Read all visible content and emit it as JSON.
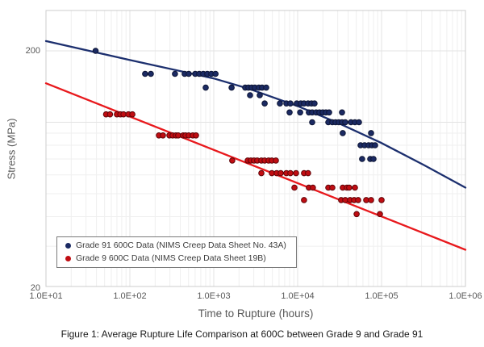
{
  "caption": "Figure 1: Average Rupture Life Comparison at 600C between Grade 9 and Grade 91",
  "colors": {
    "grade91_marker": "#1b2a63",
    "grade91_marker_edge": "#0c1433",
    "grade91_line": "#1c2f6e",
    "grade9_marker": "#c00d12",
    "grade9_marker_edge": "#5f0408",
    "grade9_line": "#e8191d",
    "grid_minor": "#efefef",
    "grid_major": "#e3e3e3",
    "plot_border": "#cccccc",
    "tick_text": "#595959"
  },
  "chart_data": {
    "type": "scatter",
    "title": "",
    "xlabel": "Time to Rupture (hours)",
    "ylabel": "Stress (MPa)",
    "x_scale": "log",
    "y_scale": "log",
    "xlim": [
      10,
      1000000
    ],
    "ylim": [
      20.3,
      296
    ],
    "grid": "on",
    "legend_position": "lower-left",
    "x_ticks": [
      {
        "value": 10,
        "label": "1.0E+01"
      },
      {
        "value": 100,
        "label": "1.0E+02"
      },
      {
        "value": 1000,
        "label": "1.0E+03"
      },
      {
        "value": 10000,
        "label": "1.0E+04"
      },
      {
        "value": 100000,
        "label": "1.0E+05"
      },
      {
        "value": 1000000,
        "label": "1.0E+06"
      }
    ],
    "y_ticks": [
      {
        "value": 200,
        "label": "200"
      },
      {
        "value": 20,
        "label": "20"
      }
    ],
    "y_minor_gridlines": [
      30,
      40,
      50,
      60,
      70,
      80,
      90,
      100,
      200
    ],
    "series": [
      {
        "name": "Grade 91 600C Data (NIMS Creep Data Sheet No. 43A)",
        "points": [
          [
            39,
            200
          ],
          [
            152,
            160
          ],
          [
            178,
            160
          ],
          [
            345,
            160
          ],
          [
            450,
            160
          ],
          [
            503,
            160
          ],
          [
            601,
            160
          ],
          [
            671,
            160
          ],
          [
            750,
            160
          ],
          [
            838,
            160
          ],
          [
            936,
            160
          ],
          [
            1050,
            160
          ],
          [
            801,
            140
          ],
          [
            1630,
            140
          ],
          [
            2370,
            140
          ],
          [
            2590,
            140
          ],
          [
            2830,
            140
          ],
          [
            3090,
            140
          ],
          [
            3450,
            140
          ],
          [
            3770,
            140
          ],
          [
            4220,
            140
          ],
          [
            2710,
            130
          ],
          [
            3530,
            130
          ],
          [
            4040,
            120
          ],
          [
            6140,
            120
          ],
          [
            7330,
            120
          ],
          [
            8190,
            120
          ],
          [
            9770,
            120
          ],
          [
            10900,
            120
          ],
          [
            11900,
            120
          ],
          [
            13300,
            120
          ],
          [
            14600,
            120
          ],
          [
            15900,
            120
          ],
          [
            8020,
            110
          ],
          [
            10700,
            110
          ],
          [
            13600,
            110
          ],
          [
            14900,
            110
          ],
          [
            16600,
            110
          ],
          [
            18200,
            110
          ],
          [
            19900,
            110
          ],
          [
            21700,
            110
          ],
          [
            23700,
            110
          ],
          [
            33800,
            110
          ],
          [
            14900,
            100
          ],
          [
            23200,
            100
          ],
          [
            25900,
            100
          ],
          [
            28300,
            100
          ],
          [
            30900,
            100
          ],
          [
            33800,
            100
          ],
          [
            36900,
            100
          ],
          [
            43200,
            100
          ],
          [
            48200,
            100
          ],
          [
            53800,
            100
          ],
          [
            34500,
            90
          ],
          [
            75000,
            90
          ],
          [
            56200,
            80
          ],
          [
            62800,
            80
          ],
          [
            70100,
            80
          ],
          [
            76700,
            80
          ],
          [
            83800,
            80
          ],
          [
            58700,
            70
          ],
          [
            73300,
            70
          ],
          [
            80200,
            70
          ]
        ],
        "trend": [
          [
            10,
            220
          ],
          [
            100,
            183
          ],
          [
            1000,
            153
          ],
          [
            2700,
            138
          ],
          [
            10000,
            117
          ],
          [
            31000,
            99
          ],
          [
            98000,
            82
          ],
          [
            320000,
            66
          ],
          [
            1000000,
            53
          ]
        ]
      },
      {
        "name": "Grade 9 600C Data (NIMS Creep Data Sheet 19B)",
        "points": [
          [
            52,
            108
          ],
          [
            58,
            108
          ],
          [
            70,
            108
          ],
          [
            77,
            108
          ],
          [
            84,
            108
          ],
          [
            96,
            108
          ],
          [
            107,
            108
          ],
          [
            222,
            88
          ],
          [
            248,
            88
          ],
          [
            296,
            88
          ],
          [
            323,
            88
          ],
          [
            353,
            88
          ],
          [
            377,
            88
          ],
          [
            431,
            88
          ],
          [
            461,
            88
          ],
          [
            503,
            88
          ],
          [
            562,
            88
          ],
          [
            614,
            88
          ],
          [
            1660,
            69
          ],
          [
            2540,
            69
          ],
          [
            2770,
            69
          ],
          [
            3020,
            69
          ],
          [
            3300,
            69
          ],
          [
            3690,
            69
          ],
          [
            4040,
            69
          ],
          [
            4510,
            69
          ],
          [
            4920,
            69
          ],
          [
            5500,
            69
          ],
          [
            3690,
            61
          ],
          [
            4920,
            61
          ],
          [
            5620,
            61
          ],
          [
            6280,
            61
          ],
          [
            7330,
            61
          ],
          [
            8190,
            61
          ],
          [
            9570,
            61
          ],
          [
            11900,
            61
          ],
          [
            13300,
            61
          ],
          [
            9160,
            53
          ],
          [
            13600,
            53
          ],
          [
            15200,
            53
          ],
          [
            23200,
            53
          ],
          [
            25900,
            53
          ],
          [
            34500,
            53
          ],
          [
            38600,
            53
          ],
          [
            41200,
            53
          ],
          [
            48200,
            53
          ],
          [
            11900,
            47
          ],
          [
            33000,
            47
          ],
          [
            36900,
            47
          ],
          [
            42200,
            47
          ],
          [
            47100,
            47
          ],
          [
            52600,
            47
          ],
          [
            65600,
            47
          ],
          [
            75000,
            47
          ],
          [
            100000,
            47
          ],
          [
            50400,
            41
          ],
          [
            95700,
            41
          ]
        ],
        "trend": [
          [
            10,
            146
          ],
          [
            1000000,
            29
          ]
        ]
      }
    ]
  }
}
